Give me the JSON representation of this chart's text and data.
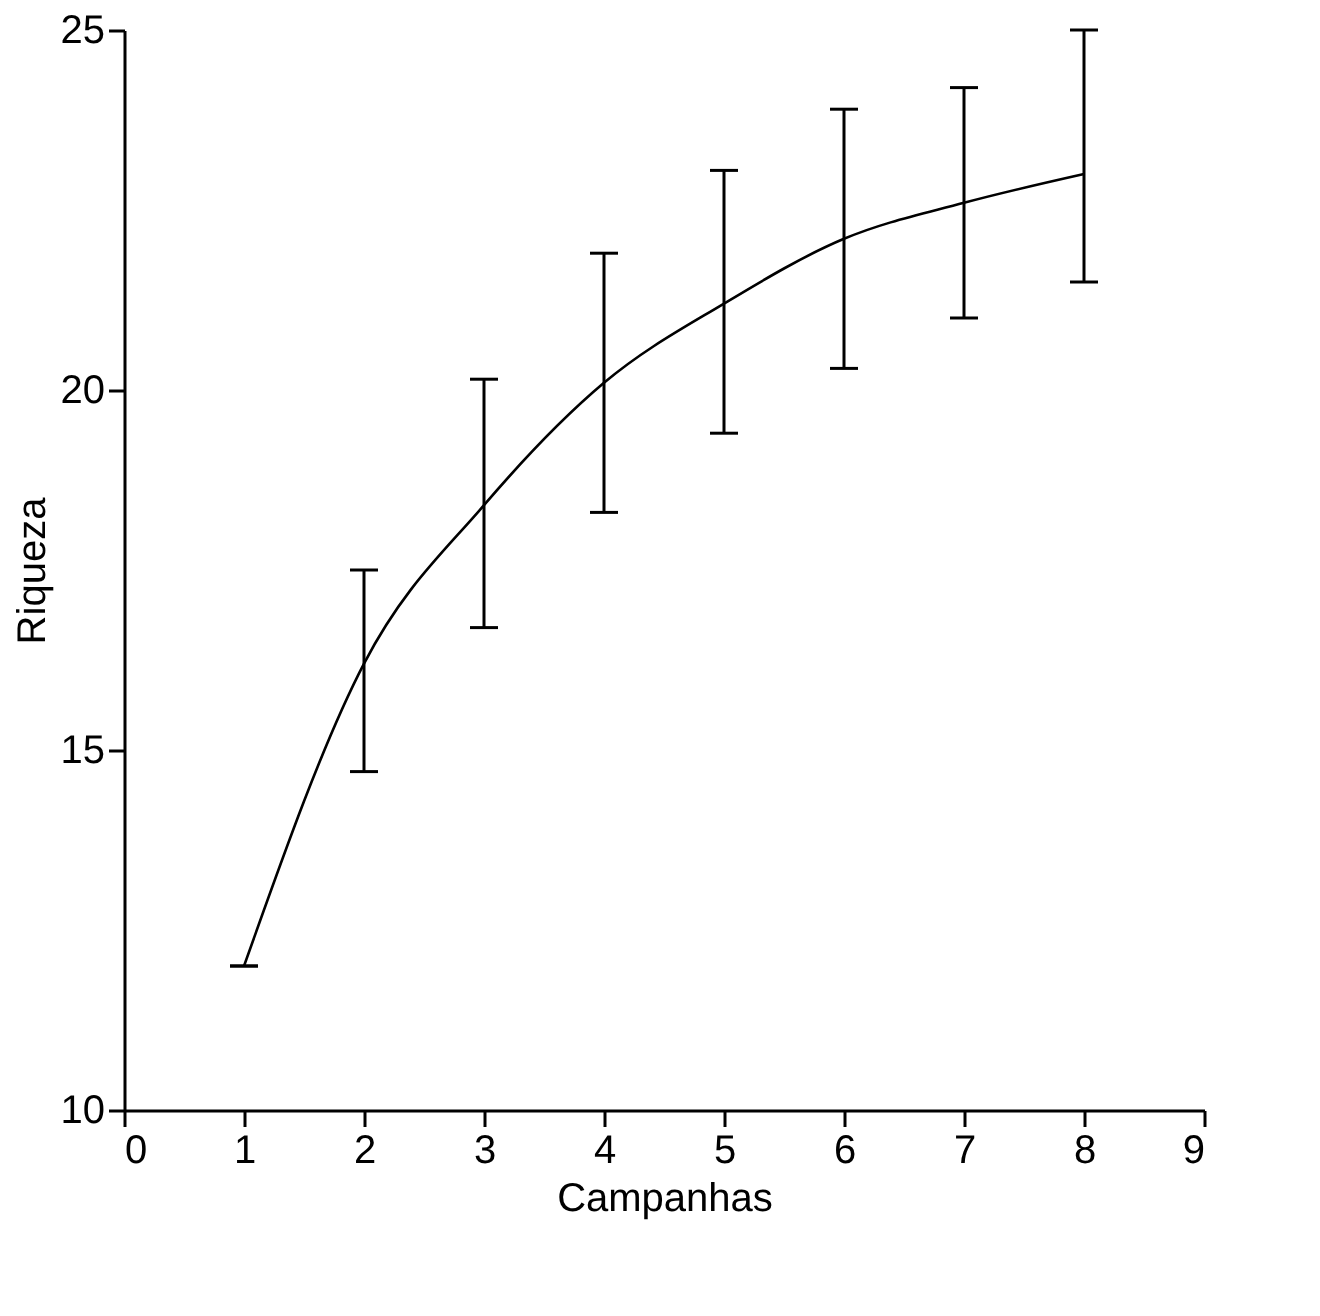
{
  "chart_data": {
    "type": "line",
    "xlabel": "Campanhas",
    "ylabel": "Riqueza",
    "x": [
      1,
      2,
      3,
      4,
      5,
      6,
      7,
      8
    ],
    "series": [
      {
        "color": "#000000",
        "values": [
          12.0,
          16.2,
          18.4,
          20.1,
          21.2,
          22.1,
          22.6,
          23.0
        ],
        "errors": [
          0,
          [
            14.7,
            17.5
          ],
          [
            16.7,
            20.15
          ],
          [
            18.3,
            21.9
          ],
          [
            19.4,
            23.05
          ],
          [
            20.3,
            23.9
          ],
          [
            21.0,
            24.2
          ],
          [
            21.5,
            25.0
          ]
        ]
      }
    ],
    "xlim": [
      0,
      9
    ],
    "xticks": [
      0,
      1,
      2,
      3,
      4,
      5,
      6,
      7,
      8,
      9
    ],
    "ylim": [
      10,
      25
    ],
    "yticks": [
      10,
      15,
      20,
      25
    ],
    "grid": false,
    "marker": "none",
    "line_style": "solid"
  }
}
